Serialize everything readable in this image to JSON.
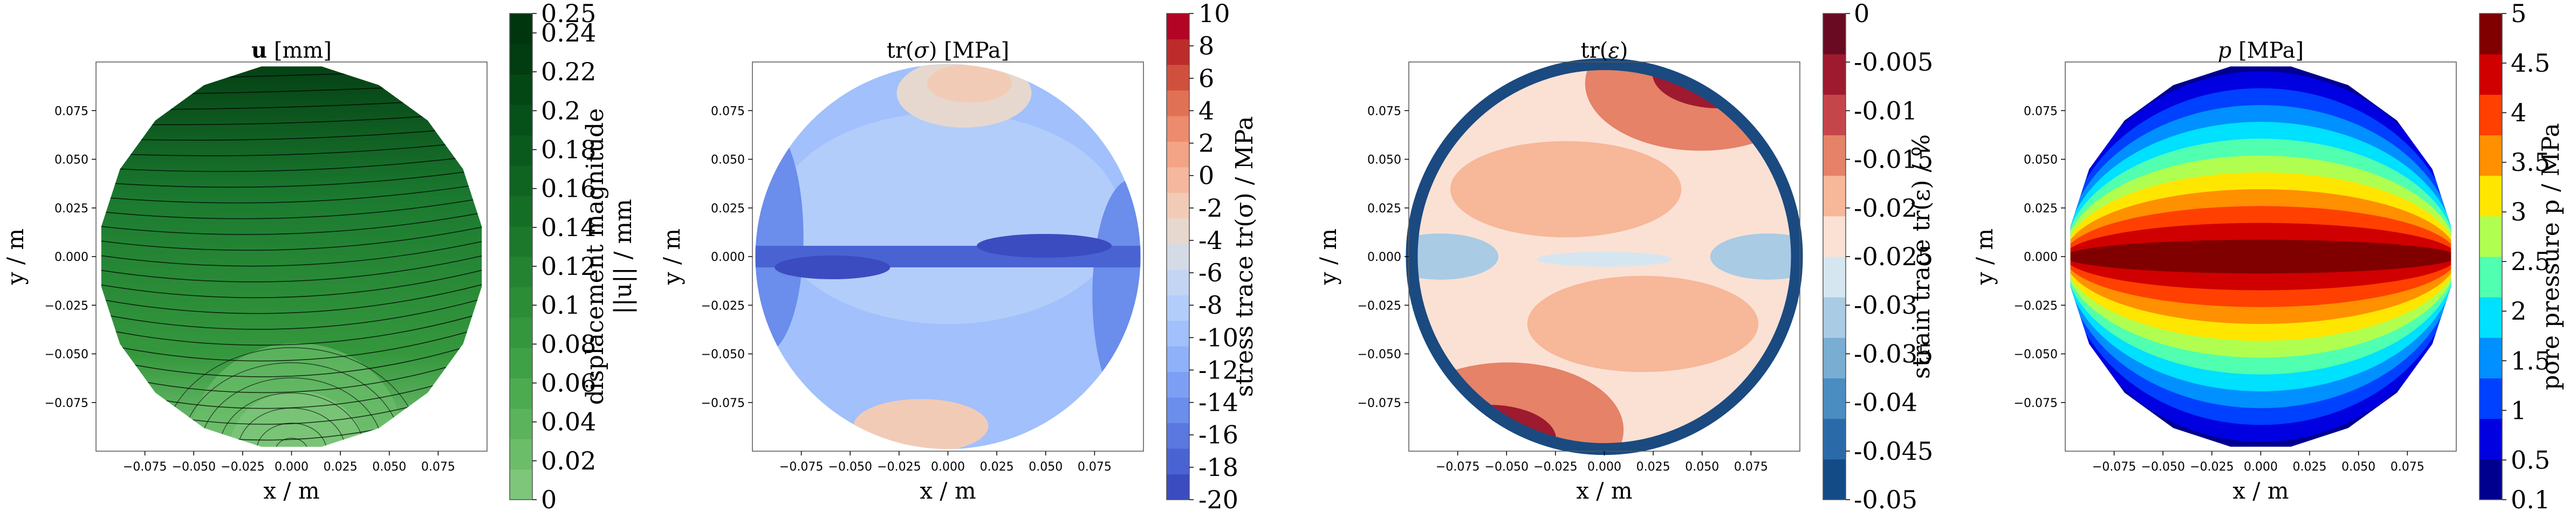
{
  "chart_data": [
    {
      "type": "contour",
      "title_html": "<tspan font-weight='bold'>u</tspan> [mm]",
      "title_text": "u [mm]",
      "xlabel": "x / m",
      "ylabel": "y / m",
      "xticks": [
        "−0.075",
        "−0.050",
        "−0.025",
        "0.000",
        "0.025",
        "0.050",
        "0.075"
      ],
      "yticks": [
        "0.075",
        "0.050",
        "0.025",
        "0.000",
        "−0.025",
        "−0.050",
        "−0.075"
      ],
      "x_tick_values": [
        -0.075,
        -0.05,
        -0.025,
        0,
        0.025,
        0.05,
        0.075
      ],
      "y_tick_values": [
        0.075,
        0.05,
        0.025,
        0,
        -0.025,
        -0.05,
        -0.075
      ],
      "xlim": [
        -0.1,
        0.1
      ],
      "ylim": [
        -0.1,
        0.1
      ],
      "streamlines": true,
      "colorbar": {
        "label": "displacement magnitude",
        "label2": "||u|| / mm",
        "ticks": [
          "0.25",
          "0.24",
          "0.22",
          "0.2",
          "0.18",
          "0.16",
          "0.14",
          "0.12",
          "0.1",
          "0.08",
          "0.06",
          "0.04",
          "0.02",
          "0"
        ],
        "tick_values": [
          0.25,
          0.24,
          0.22,
          0.2,
          0.18,
          0.16,
          0.14,
          0.12,
          0.1,
          0.08,
          0.06,
          0.04,
          0.02,
          0
        ],
        "range": [
          0,
          0.25
        ],
        "colors": [
          "#7dc67a",
          "#6bbd69",
          "#5bb35b",
          "#4caa4f",
          "#3fa145",
          "#35973d",
          "#2c8d37",
          "#248331",
          "#1c782b",
          "#156e26",
          "#0f6421",
          "#0a5a1d",
          "#065019",
          "#034715",
          "#013d11",
          "#00360e"
        ]
      },
      "domain_shape": "polygon"
    },
    {
      "type": "contour",
      "title_html": "tr(<tspan font-style='italic'>σ</tspan>) [MPa]",
      "title_text": "tr(σ) [MPa]",
      "xlabel": "x / m",
      "ylabel": "y / m",
      "xticks": [
        "−0.075",
        "−0.050",
        "−0.025",
        "0.000",
        "0.025",
        "0.050",
        "0.075"
      ],
      "yticks": [
        "0.075",
        "0.050",
        "0.025",
        "0.000",
        "−0.025",
        "−0.050",
        "−0.075"
      ],
      "x_tick_values": [
        -0.075,
        -0.05,
        -0.025,
        0,
        0.025,
        0.05,
        0.075
      ],
      "y_tick_values": [
        0.075,
        0.05,
        0.025,
        0,
        -0.025,
        -0.05,
        -0.075
      ],
      "xlim": [
        -0.1,
        0.1
      ],
      "ylim": [
        -0.1,
        0.1
      ],
      "colorbar": {
        "label": "stress trace tr(σ) / MPa",
        "ticks": [
          "10",
          "8",
          "6",
          "4",
          "2",
          "0",
          "-2",
          "-4",
          "-6",
          "-8",
          "-10",
          "-12",
          "-14",
          "-16",
          "-18",
          "-20"
        ],
        "tick_values": [
          10,
          8,
          6,
          4,
          2,
          0,
          -2,
          -4,
          -6,
          -8,
          -10,
          -12,
          -14,
          -16,
          -18,
          -20
        ],
        "range": [
          -20,
          10
        ],
        "colors": [
          "#3b4cc0",
          "#4a63d3",
          "#5a78e0",
          "#6b8deb",
          "#7d9ff3",
          "#8fb1f9",
          "#a1c0fc",
          "#b3cdfb",
          "#c4d5f3",
          "#d4dbe6",
          "#e6d8cf",
          "#f2cbb7",
          "#f5b89f",
          "#f3a386",
          "#ec8b6e",
          "#e07155",
          "#d0503e",
          "#bd2c2b",
          "#b40426"
        ]
      },
      "domain_shape": "circle"
    },
    {
      "type": "contour",
      "title_html": "tr(<tspan font-style='italic'>ε</tspan>)",
      "title_text": "tr(ε)",
      "xlabel": "x / m",
      "ylabel": "y / m",
      "xticks": [
        "−0.075",
        "−0.050",
        "−0.025",
        "0.000",
        "0.025",
        "0.050",
        "0.075"
      ],
      "yticks": [
        "0.075",
        "0.050",
        "0.025",
        "0.000",
        "−0.025",
        "−0.050",
        "−0.075"
      ],
      "x_tick_values": [
        -0.075,
        -0.05,
        -0.025,
        0,
        0.025,
        0.05,
        0.075
      ],
      "y_tick_values": [
        0.075,
        0.05,
        0.025,
        0,
        -0.025,
        -0.05,
        -0.075
      ],
      "xlim": [
        -0.1,
        0.1
      ],
      "ylim": [
        -0.1,
        0.1
      ],
      "colorbar": {
        "label": "strain trace tr(ε) / %",
        "ticks": [
          "0",
          "-0.005",
          "-0.01",
          "-0.015",
          "-0.02",
          "-0.025",
          "-0.03",
          "-0.035",
          "-0.04",
          "-0.045",
          "-0.05"
        ],
        "tick_values": [
          0,
          -0.005,
          -0.01,
          -0.015,
          -0.02,
          -0.025,
          -0.03,
          -0.035,
          -0.04,
          -0.045,
          -0.05
        ],
        "range": [
          -0.05,
          0
        ],
        "colors": [
          "#134b87",
          "#2b6aa9",
          "#4a8dc1",
          "#79add2",
          "#a9cbe3",
          "#d5e6f0",
          "#fbe1d4",
          "#f7b799",
          "#e58267",
          "#c5464a",
          "#9e1a2f",
          "#6a0a22"
        ]
      },
      "domain_shape": "circle"
    },
    {
      "type": "contour",
      "title_html": "<tspan font-style='italic'>p</tspan> [MPa]",
      "title_text": "p [MPa]",
      "xlabel": "x / m",
      "ylabel": "y / m",
      "xticks": [
        "−0.075",
        "−0.050",
        "−0.025",
        "0.000",
        "0.025",
        "0.050",
        "0.075"
      ],
      "yticks": [
        "0.075",
        "0.050",
        "0.025",
        "0.000",
        "−0.025",
        "−0.050",
        "−0.075"
      ],
      "x_tick_values": [
        -0.075,
        -0.05,
        -0.025,
        0,
        0.025,
        0.05,
        0.075
      ],
      "y_tick_values": [
        0.075,
        0.05,
        0.025,
        0,
        -0.025,
        -0.05,
        -0.075
      ],
      "xlim": [
        -0.1,
        0.1
      ],
      "ylim": [
        -0.1,
        0.1
      ],
      "colorbar": {
        "label": "pore pressure p / MPa",
        "ticks": [
          "5",
          "4.5",
          "4",
          "3.5",
          "3",
          "2.5",
          "2",
          "1.5",
          "1",
          "0.5",
          "0.1"
        ],
        "tick_values": [
          5,
          4.5,
          4,
          3.5,
          3,
          2.5,
          2,
          1.5,
          1,
          0.5,
          0.1
        ],
        "range": [
          0.1,
          5
        ],
        "colors": [
          "#00008f",
          "#0000e0",
          "#0040ff",
          "#0090ff",
          "#00e0ff",
          "#50ffaf",
          "#b0ff50",
          "#ffe600",
          "#ff9000",
          "#ff4000",
          "#d00000",
          "#800000"
        ]
      },
      "domain_shape": "polygon"
    }
  ]
}
